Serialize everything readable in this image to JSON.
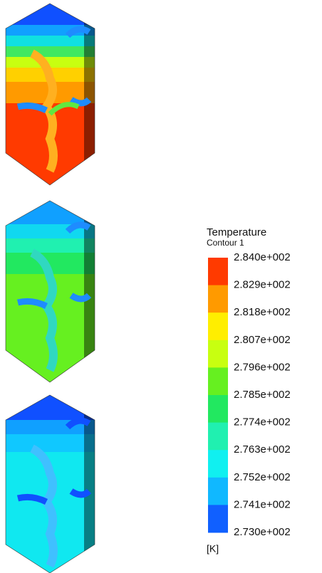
{
  "legend": {
    "title": "Temperature",
    "subtitle": "Contour 1",
    "labels": [
      "2.840e+002",
      "2.829e+002",
      "2.818e+002",
      "2.807e+002",
      "2.796e+002",
      "2.785e+002",
      "2.774e+002",
      "2.763e+002",
      "2.752e+002",
      "2.741e+002",
      "2.730e+002"
    ],
    "colors": [
      "#ff3a00",
      "#ff9a00",
      "#ffee00",
      "#c8ff10",
      "#66f020",
      "#22e860",
      "#20f0b0",
      "#10f0f0",
      "#10b8ff",
      "#1060ff",
      "#1420f0"
    ],
    "unit": "[K]"
  }
}
